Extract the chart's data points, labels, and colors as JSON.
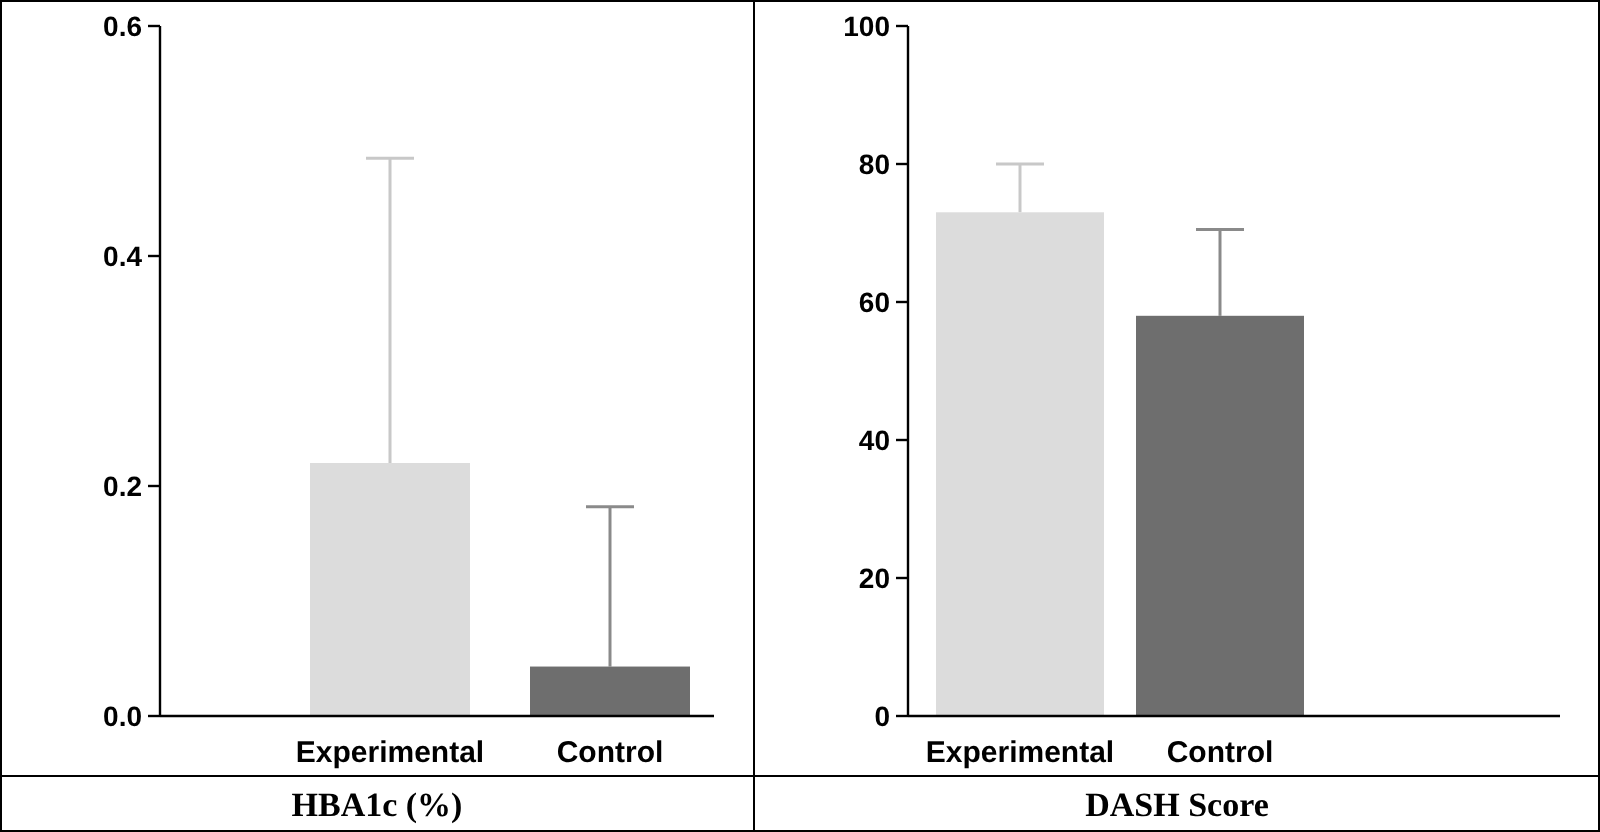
{
  "chart_data": [
    {
      "type": "bar",
      "xlabel": "HBA1c (%)",
      "categories": [
        "Experimental",
        "Control"
      ],
      "values": [
        0.22,
        0.043
      ],
      "colors": [
        "#dcdcdc",
        "#6e6e6e"
      ],
      "errors": [
        [
          0.22,
          0.485
        ],
        [
          0.043,
          0.182
        ]
      ],
      "ylim": [
        0,
        0.6
      ],
      "yticks": [
        {
          "value": 0,
          "label": "0.0"
        },
        0.2,
        0.4,
        0.6
      ],
      "grid": false
    },
    {
      "type": "bar",
      "xlabel": "DASH Score",
      "categories": [
        "Experimental",
        "Control"
      ],
      "values": [
        73,
        58
      ],
      "colors": [
        "#dcdcdc",
        "#6e6e6e"
      ],
      "errors": [
        [
          73,
          80
        ],
        [
          58,
          70.5
        ]
      ],
      "ylim": [
        0,
        100
      ],
      "yticks": [
        0,
        20,
        40,
        60,
        80,
        100
      ],
      "grid": false
    }
  ]
}
